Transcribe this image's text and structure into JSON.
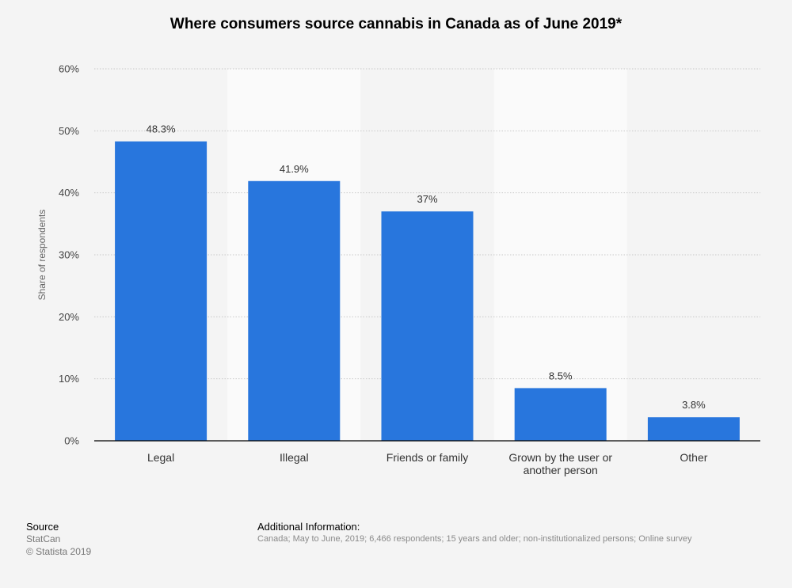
{
  "chart_data": {
    "type": "bar",
    "title": "Where consumers source cannabis in Canada as of June 2019*",
    "ylabel": "Share of respondents",
    "xlabel": "",
    "ylim": [
      0,
      60
    ],
    "yticks": [
      0,
      10,
      20,
      30,
      40,
      50,
      60
    ],
    "ytick_labels": [
      "0%",
      "10%",
      "20%",
      "30%",
      "40%",
      "50%",
      "60%"
    ],
    "categories": [
      [
        "Legal"
      ],
      [
        "Illegal"
      ],
      [
        "Friends or family"
      ],
      [
        "Grown by the user or",
        "another person"
      ],
      [
        "Other"
      ]
    ],
    "values": [
      48.3,
      41.9,
      37,
      8.5,
      3.8
    ],
    "value_labels": [
      "48.3%",
      "41.9%",
      "37%",
      "8.5%",
      "3.8%"
    ],
    "grid": true,
    "legend": "none"
  },
  "colors": {
    "bar": "#2876dd",
    "background": "#f4f4f4",
    "band": "#fafafa",
    "grid": "#c8c8c8",
    "axis": "#000000"
  },
  "footer": {
    "source_heading": "Source",
    "source_name": "StatCan",
    "copyright": "© Statista 2019",
    "info_heading": "Additional Information:",
    "info_text": "Canada; May to June, 2019; 6,466 respondents; 15 years and older; non-institutionalized persons; Online survey"
  }
}
